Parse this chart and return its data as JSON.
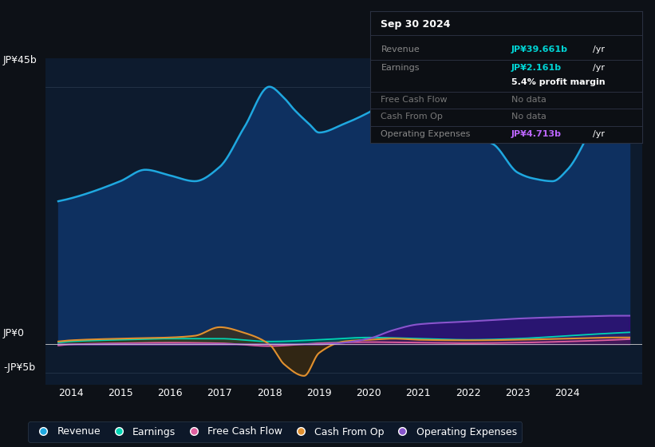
{
  "background_color": "#0d1117",
  "plot_bg_color": "#0d1b2e",
  "ylim": [
    -7,
    50
  ],
  "xlim": [
    2013.5,
    2025.5
  ],
  "xticks": [
    2014,
    2015,
    2016,
    2017,
    2018,
    2019,
    2020,
    2021,
    2022,
    2023,
    2024
  ],
  "colors": {
    "revenue": "#1fa8e0",
    "earnings": "#00d4b4",
    "free_cash_flow": "#e060a0",
    "cash_from_op": "#e09030",
    "operating_expenses": "#8855cc"
  },
  "legend": [
    "Revenue",
    "Earnings",
    "Free Cash Flow",
    "Cash From Op",
    "Operating Expenses"
  ],
  "tooltip_title": "Sep 30 2024",
  "tooltip_rows": [
    {
      "label": "Revenue",
      "value": "JP¥39.661b",
      "unit": "/yr",
      "value_color": "#00d4d4",
      "label_color": "#888888"
    },
    {
      "label": "Earnings",
      "value": "JP¥2.161b",
      "unit": "/yr",
      "value_color": "#00d4d4",
      "label_color": "#888888"
    },
    {
      "label": "",
      "value": "5.4% profit margin",
      "unit": "",
      "value_color": "#cccccc",
      "label_color": "#888888"
    },
    {
      "label": "Free Cash Flow",
      "value": "No data",
      "unit": "",
      "value_color": "#777777",
      "label_color": "#777777"
    },
    {
      "label": "Cash From Op",
      "value": "No data",
      "unit": "",
      "value_color": "#777777",
      "label_color": "#777777"
    },
    {
      "label": "Operating Expenses",
      "value": "JP¥4.713b",
      "unit": "/yr",
      "value_color": "#bb66ff",
      "label_color": "#888888"
    }
  ]
}
